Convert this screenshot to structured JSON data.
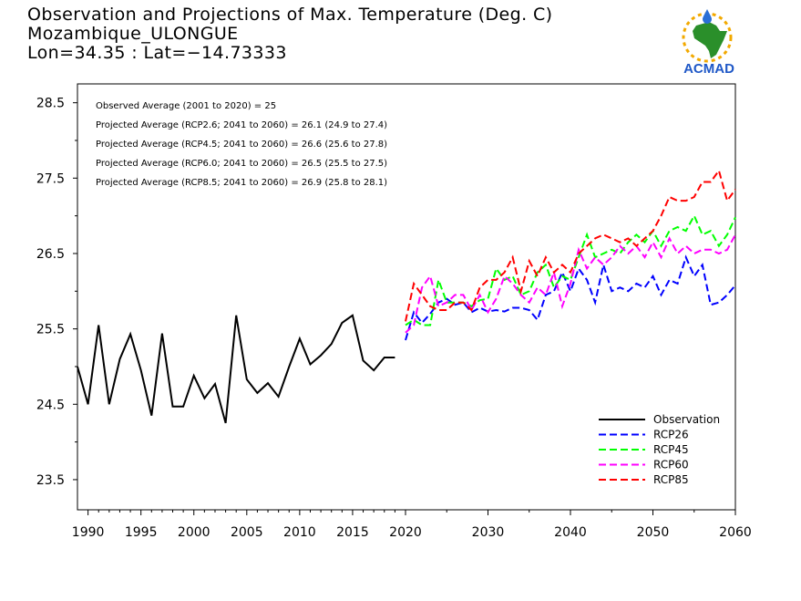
{
  "header": {
    "title": "Observation and Projections of Max. Temperature (Deg. C)",
    "station": "Mozambique_ULONGUE",
    "coords": "Lon=34.35 : Lat=−14.73333"
  },
  "logo": {
    "text": "ACMAD",
    "icon": "africa-drop-logo-icon"
  },
  "chart_data": {
    "type": "line",
    "title": "Observation and Projections of Max. Temperature (Deg. C)",
    "xlim": [
      1989,
      2060
    ],
    "ylim": [
      23.1,
      28.75
    ],
    "x_ticks": [
      1990,
      1995,
      2000,
      2005,
      2010,
      2015,
      2020,
      2030,
      2040,
      2050,
      2060
    ],
    "y_ticks": [
      23.5,
      24.5,
      25.5,
      26.5,
      27.5,
      28.5
    ],
    "annotations": [
      "Observed Average (2001 to 2020) = 25",
      "Projected Average (RCP2.6; 2041 to 2060) = 26.1 (24.9 to 27.4)",
      "Projected Average (RCP4.5; 2041 to 2060) = 26.6 (25.6 to 27.8)",
      "Projected Average (RCP6.0; 2041 to 2060) = 26.5 (25.5 to 27.5)",
      "Projected Average (RCP8.5; 2041 to 2060) = 26.9 (25.8 to 28.1)"
    ],
    "legend_position": "bottom-right",
    "series": [
      {
        "name": "Observation",
        "color": "#000000",
        "dashed": false,
        "x": [
          1989,
          1990,
          1991,
          1992,
          1993,
          1994,
          1995,
          1996,
          1997,
          1998,
          1999,
          2000,
          2001,
          2002,
          2003,
          2004,
          2005,
          2006,
          2007,
          2008,
          2009,
          2010,
          2011,
          2012,
          2013,
          2014,
          2015,
          2016,
          2017,
          2018,
          2019
        ],
        "y": [
          25.0,
          24.5,
          25.55,
          24.5,
          25.1,
          25.43,
          24.95,
          24.35,
          25.44,
          24.47,
          24.47,
          24.88,
          24.58,
          24.77,
          24.25,
          25.68,
          24.83,
          24.65,
          24.78,
          24.6,
          25.0,
          25.37,
          25.03,
          25.15,
          25.3,
          25.58,
          25.68,
          25.08,
          24.95,
          25.12,
          25.12
        ]
      },
      {
        "name": "RCP26",
        "color": "#0000ff",
        "dashed": true,
        "x": [
          2020,
          2021,
          2022,
          2023,
          2024,
          2025,
          2026,
          2027,
          2028,
          2029,
          2030,
          2031,
          2032,
          2033,
          2034,
          2035,
          2036,
          2037,
          2038,
          2039,
          2040,
          2041,
          2042,
          2043,
          2044,
          2045,
          2046,
          2047,
          2048,
          2049,
          2050,
          2051,
          2052,
          2053,
          2054,
          2055,
          2056,
          2057,
          2058,
          2059,
          2060
        ],
        "y": [
          25.35,
          25.72,
          25.58,
          25.7,
          25.85,
          25.9,
          25.82,
          25.85,
          25.72,
          25.78,
          25.73,
          25.75,
          25.73,
          25.78,
          25.78,
          25.75,
          25.62,
          25.95,
          26.0,
          26.25,
          26.0,
          26.3,
          26.15,
          25.85,
          26.35,
          26.0,
          26.05,
          26.0,
          26.1,
          26.05,
          26.2,
          25.95,
          26.15,
          26.1,
          26.45,
          26.2,
          26.35,
          25.82,
          25.85,
          25.95,
          26.08
        ]
      },
      {
        "name": "RCP45",
        "color": "#00ff00",
        "dashed": true,
        "x": [
          2020,
          2021,
          2022,
          2023,
          2024,
          2025,
          2026,
          2027,
          2028,
          2029,
          2030,
          2031,
          2032,
          2033,
          2034,
          2035,
          2036,
          2037,
          2038,
          2039,
          2040,
          2041,
          2042,
          2043,
          2044,
          2045,
          2046,
          2047,
          2048,
          2049,
          2050,
          2051,
          2052,
          2053,
          2054,
          2055,
          2056,
          2057,
          2058,
          2059,
          2060
        ],
        "y": [
          25.55,
          25.62,
          25.55,
          25.55,
          26.15,
          25.85,
          25.85,
          25.85,
          25.8,
          25.88,
          25.9,
          26.3,
          26.15,
          26.2,
          25.95,
          26.0,
          26.25,
          26.35,
          26.05,
          26.2,
          26.15,
          26.45,
          26.75,
          26.45,
          26.5,
          26.55,
          26.5,
          26.65,
          26.75,
          26.65,
          26.8,
          26.6,
          26.8,
          26.85,
          26.8,
          27.0,
          26.75,
          26.8,
          26.6,
          26.75,
          26.98
        ]
      },
      {
        "name": "RCP60",
        "color": "#ff00ff",
        "dashed": true,
        "x": [
          2020,
          2021,
          2022,
          2023,
          2024,
          2025,
          2026,
          2027,
          2028,
          2029,
          2030,
          2031,
          2032,
          2033,
          2034,
          2035,
          2036,
          2037,
          2038,
          2039,
          2040,
          2041,
          2042,
          2043,
          2044,
          2045,
          2046,
          2047,
          2048,
          2049,
          2050,
          2051,
          2052,
          2053,
          2054,
          2055,
          2056,
          2057,
          2058,
          2059,
          2060
        ],
        "y": [
          25.45,
          25.55,
          26.05,
          26.2,
          25.8,
          25.85,
          25.95,
          25.95,
          25.75,
          25.95,
          25.72,
          25.9,
          26.2,
          26.1,
          25.95,
          25.85,
          26.05,
          25.95,
          26.25,
          25.8,
          26.1,
          26.55,
          26.3,
          26.45,
          26.35,
          26.45,
          26.6,
          26.5,
          26.6,
          26.45,
          26.65,
          26.45,
          26.7,
          26.5,
          26.6,
          26.5,
          26.55,
          26.55,
          26.5,
          26.55,
          26.75
        ]
      },
      {
        "name": "RCP85",
        "color": "#ff0000",
        "dashed": true,
        "x": [
          2020,
          2021,
          2022,
          2023,
          2024,
          2025,
          2026,
          2027,
          2028,
          2029,
          2030,
          2031,
          2032,
          2033,
          2034,
          2035,
          2036,
          2037,
          2038,
          2039,
          2040,
          2041,
          2042,
          2043,
          2044,
          2045,
          2046,
          2047,
          2048,
          2049,
          2050,
          2051,
          2052,
          2053,
          2054,
          2055,
          2056,
          2057,
          2058,
          2059,
          2060
        ],
        "y": [
          25.6,
          26.1,
          25.95,
          25.8,
          25.75,
          25.75,
          25.85,
          25.85,
          25.75,
          26.05,
          26.15,
          26.15,
          26.25,
          26.45,
          26.0,
          26.4,
          26.2,
          26.45,
          26.25,
          26.35,
          26.25,
          26.5,
          26.6,
          26.7,
          26.75,
          26.7,
          26.65,
          26.7,
          26.6,
          26.7,
          26.8,
          27.0,
          27.25,
          27.2,
          27.2,
          27.25,
          27.45,
          27.45,
          27.6,
          27.2,
          27.35
        ]
      }
    ]
  }
}
